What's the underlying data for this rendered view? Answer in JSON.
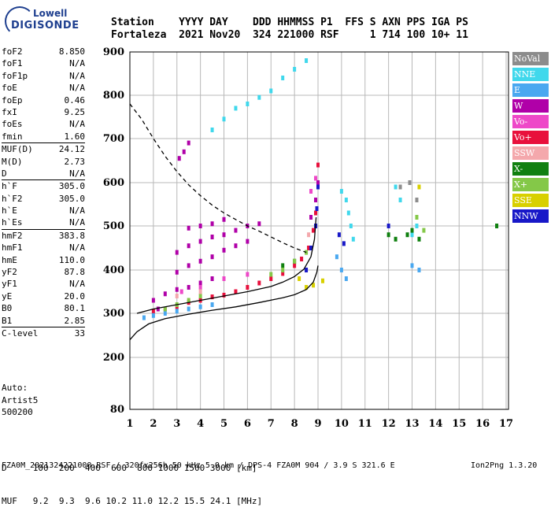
{
  "logo": {
    "top": "Lowell",
    "bottom": "DIGISONDE"
  },
  "header": {
    "line1": "Station    YYYY DAY    DDD HHMMSS P1  FFS S AXN PPS IGA PS",
    "line2": "Fortaleza  2021 Nov20  324 221000 RSF     1 714 100 10+ 11"
  },
  "params": [
    {
      "name": "foF2",
      "value": "8.850"
    },
    {
      "name": "foF1",
      "value": "N/A"
    },
    {
      "name": "foF1p",
      "value": "N/A"
    },
    {
      "name": "foE",
      "value": "N/A"
    },
    {
      "name": "foEp",
      "value": "0.46"
    },
    {
      "name": "fxI",
      "value": "9.25"
    },
    {
      "name": "foEs",
      "value": "N/A"
    },
    {
      "name": "fmin",
      "value": "1.60"
    },
    {
      "name": "MUF(D)",
      "value": "24.12",
      "sep": true
    },
    {
      "name": "M(D)",
      "value": "2.73"
    },
    {
      "name": "D",
      "value": "N/A"
    },
    {
      "name": "h`F",
      "value": "305.0",
      "sep": true
    },
    {
      "name": "h`F2",
      "value": "305.0"
    },
    {
      "name": "h`E",
      "value": "N/A"
    },
    {
      "name": "h`Es",
      "value": "N/A"
    },
    {
      "name": "hmF2",
      "value": "383.8",
      "sep": true
    },
    {
      "name": "hmF1",
      "value": "N/A"
    },
    {
      "name": "hmE",
      "value": "110.0"
    },
    {
      "name": "yF2",
      "value": "87.8"
    },
    {
      "name": "yF1",
      "value": "N/A"
    },
    {
      "name": "yE",
      "value": "20.0"
    },
    {
      "name": "B0",
      "value": "80.1"
    },
    {
      "name": "B1",
      "value": "2.85"
    },
    {
      "name": "C-level",
      "value": "33",
      "sep": true
    }
  ],
  "auto": {
    "line1": "Auto:",
    "line2": "Artist5",
    "line3": "500200"
  },
  "legend": [
    {
      "label": "NoVal",
      "color": "#8c8c8c"
    },
    {
      "label": "NNE",
      "color": "#40d8ec"
    },
    {
      "label": "E",
      "color": "#4aa8f0"
    },
    {
      "label": "W",
      "color": "#b000a8"
    },
    {
      "label": "Vo-",
      "color": "#ee48c8"
    },
    {
      "label": "Vo+",
      "color": "#e8103c"
    },
    {
      "label": "SSW",
      "color": "#f4a8ac"
    },
    {
      "label": "X-",
      "color": "#108010"
    },
    {
      "label": "X+",
      "color": "#84c848"
    },
    {
      "label": "SSE",
      "color": "#d8d000"
    },
    {
      "label": "NNW",
      "color": "#1818c8"
    }
  ],
  "bottom": {
    "d_line": "D     100  200  400  600  800 1000 1500 3000 [km]",
    "muf_line": "MUF   9.2  9.3  9.6 10.2 11.0 12.2 15.5 24.1 [MHz]",
    "footer_left": "FZA0M_2021324221000.RSF / 320fx256h 50 kHz 5.0 km / DPS-4 FZA0M 904 / 3.9 S 321.6 E",
    "footer_right": "Ion2Png 1.3.20"
  },
  "chart_data": {
    "type": "scatter",
    "x_ticks": [
      1,
      2,
      3,
      4,
      5,
      6,
      7,
      8,
      9,
      10,
      11,
      12,
      13,
      14,
      15,
      16,
      17
    ],
    "y_ticks": [
      80,
      200,
      300,
      400,
      500,
      600,
      700,
      800,
      900
    ],
    "xlim": [
      1,
      17.1
    ],
    "y_scale": "piecewise",
    "grid": true,
    "series": [
      {
        "name": "W",
        "color": "#b000a8",
        "points": [
          [
            2.0,
            330
          ],
          [
            2.5,
            345
          ],
          [
            3.0,
            355
          ],
          [
            3.5,
            360
          ],
          [
            4.0,
            370
          ],
          [
            4.5,
            380
          ],
          [
            2.2,
            310
          ],
          [
            3.0,
            395
          ],
          [
            3.5,
            410
          ],
          [
            4.0,
            420
          ],
          [
            4.5,
            430
          ],
          [
            5.0,
            445
          ],
          [
            5.5,
            455
          ],
          [
            6.0,
            465
          ],
          [
            3.0,
            440
          ],
          [
            3.5,
            455
          ],
          [
            4.0,
            465
          ],
          [
            4.5,
            475
          ],
          [
            5.0,
            480
          ],
          [
            5.5,
            490
          ],
          [
            6.0,
            500
          ],
          [
            6.5,
            505
          ],
          [
            3.5,
            495
          ],
          [
            4.0,
            500
          ],
          [
            4.5,
            505
          ],
          [
            5.0,
            515
          ],
          [
            3.1,
            655
          ],
          [
            3.3,
            670
          ],
          [
            3.5,
            690
          ],
          [
            8.7,
            520
          ],
          [
            8.9,
            560
          ],
          [
            9.0,
            600
          ]
        ]
      },
      {
        "name": "Vo+",
        "color": "#e8103c",
        "points": [
          [
            2.0,
            305
          ],
          [
            2.5,
            310
          ],
          [
            3.0,
            315
          ],
          [
            3.5,
            325
          ],
          [
            4.0,
            330
          ],
          [
            4.5,
            338
          ],
          [
            5.0,
            342
          ],
          [
            5.5,
            350
          ],
          [
            6.0,
            360
          ],
          [
            6.5,
            370
          ],
          [
            7.0,
            380
          ],
          [
            7.5,
            392
          ],
          [
            8.0,
            410
          ],
          [
            8.3,
            425
          ],
          [
            8.6,
            450
          ],
          [
            8.8,
            490
          ],
          [
            8.9,
            530
          ],
          [
            9.0,
            590
          ],
          [
            9.0,
            640
          ]
        ]
      },
      {
        "name": "NNE",
        "color": "#40d8ec",
        "points": [
          [
            4.5,
            720
          ],
          [
            5.0,
            745
          ],
          [
            5.5,
            770
          ],
          [
            6.0,
            780
          ],
          [
            6.5,
            795
          ],
          [
            7.0,
            810
          ],
          [
            7.5,
            840
          ],
          [
            8.0,
            860
          ],
          [
            8.5,
            880
          ],
          [
            10.0,
            580
          ],
          [
            10.2,
            560
          ],
          [
            10.3,
            530
          ],
          [
            10.4,
            500
          ],
          [
            10.5,
            470
          ],
          [
            12.3,
            590
          ],
          [
            12.5,
            560
          ],
          [
            13.0,
            480
          ],
          [
            13.2,
            500
          ]
        ]
      },
      {
        "name": "E",
        "color": "#4aa8f0",
        "points": [
          [
            1.6,
            290
          ],
          [
            2.0,
            295
          ],
          [
            2.5,
            300
          ],
          [
            3.0,
            305
          ],
          [
            3.5,
            310
          ],
          [
            4.0,
            315
          ],
          [
            4.5,
            320
          ],
          [
            9.8,
            430
          ],
          [
            10.0,
            400
          ],
          [
            10.2,
            380
          ],
          [
            13.0,
            410
          ],
          [
            13.3,
            400
          ]
        ]
      },
      {
        "name": "X-",
        "color": "#108010",
        "points": [
          [
            12.0,
            480
          ],
          [
            12.3,
            470
          ],
          [
            12.8,
            480
          ],
          [
            13.0,
            490
          ],
          [
            13.3,
            470
          ],
          [
            16.6,
            500
          ],
          [
            7.5,
            410
          ],
          [
            8.0,
            420
          ]
        ]
      },
      {
        "name": "X+",
        "color": "#84c848",
        "points": [
          [
            2.5,
            310
          ],
          [
            3.0,
            320
          ],
          [
            3.5,
            330
          ],
          [
            4.0,
            340
          ],
          [
            7.0,
            390
          ],
          [
            7.5,
            400
          ],
          [
            8.0,
            420
          ],
          [
            8.5,
            440
          ],
          [
            13.2,
            520
          ],
          [
            13.5,
            490
          ]
        ]
      },
      {
        "name": "SSE",
        "color": "#d8d000",
        "points": [
          [
            8.5,
            360
          ],
          [
            8.8,
            365
          ],
          [
            9.2,
            375
          ],
          [
            8.2,
            380
          ],
          [
            13.3,
            590
          ]
        ]
      },
      {
        "name": "NNW",
        "color": "#1818c8",
        "points": [
          [
            8.5,
            400
          ],
          [
            8.7,
            450
          ],
          [
            8.9,
            500
          ],
          [
            8.95,
            540
          ],
          [
            9.0,
            590
          ],
          [
            9.9,
            480
          ],
          [
            10.1,
            460
          ],
          [
            12.0,
            500
          ]
        ]
      },
      {
        "name": "Vo-",
        "color": "#ee48c8",
        "points": [
          [
            3.2,
            350
          ],
          [
            4.0,
            360
          ],
          [
            5.0,
            380
          ],
          [
            6.0,
            390
          ],
          [
            8.7,
            580
          ],
          [
            8.9,
            610
          ]
        ]
      },
      {
        "name": "SSW",
        "color": "#f4a8ac",
        "points": [
          [
            3.0,
            340
          ],
          [
            4.0,
            350
          ],
          [
            8.6,
            480
          ]
        ]
      },
      {
        "name": "NoVal",
        "color": "#8c8c8c",
        "points": [
          [
            12.5,
            590
          ],
          [
            12.9,
            600
          ],
          [
            13.2,
            560
          ]
        ]
      }
    ],
    "lines": [
      {
        "style": "solid",
        "color": "#000000",
        "points": [
          [
            1.0,
            240
          ],
          [
            1.3,
            258
          ],
          [
            1.8,
            276
          ],
          [
            2.5,
            288
          ],
          [
            3.5,
            298
          ],
          [
            4.5,
            307
          ],
          [
            5.5,
            315
          ],
          [
            6.5,
            325
          ],
          [
            7.5,
            336
          ],
          [
            8.0,
            343
          ],
          [
            8.5,
            355
          ],
          [
            8.8,
            372
          ],
          [
            8.95,
            395
          ],
          [
            9.0,
            410
          ]
        ]
      },
      {
        "style": "solid",
        "color": "#000000",
        "points": [
          [
            1.3,
            300
          ],
          [
            2.0,
            310
          ],
          [
            3.0,
            320
          ],
          [
            4.0,
            330
          ],
          [
            5.0,
            340
          ],
          [
            6.0,
            350
          ],
          [
            7.0,
            362
          ],
          [
            7.5,
            372
          ],
          [
            8.0,
            385
          ],
          [
            8.4,
            402
          ],
          [
            8.7,
            430
          ],
          [
            8.85,
            470
          ],
          [
            8.92,
            520
          ]
        ]
      },
      {
        "style": "dashed",
        "color": "#000000",
        "points": [
          [
            1.0,
            780
          ],
          [
            1.5,
            745
          ],
          [
            2.0,
            700
          ],
          [
            2.5,
            660
          ],
          [
            3.0,
            625
          ],
          [
            3.5,
            595
          ],
          [
            4.0,
            570
          ],
          [
            4.5,
            548
          ],
          [
            5.0,
            530
          ],
          [
            5.5,
            515
          ],
          [
            6.0,
            500
          ],
          [
            6.5,
            488
          ],
          [
            7.0,
            475
          ],
          [
            7.5,
            462
          ],
          [
            8.0,
            450
          ],
          [
            8.5,
            440
          ]
        ]
      }
    ]
  }
}
